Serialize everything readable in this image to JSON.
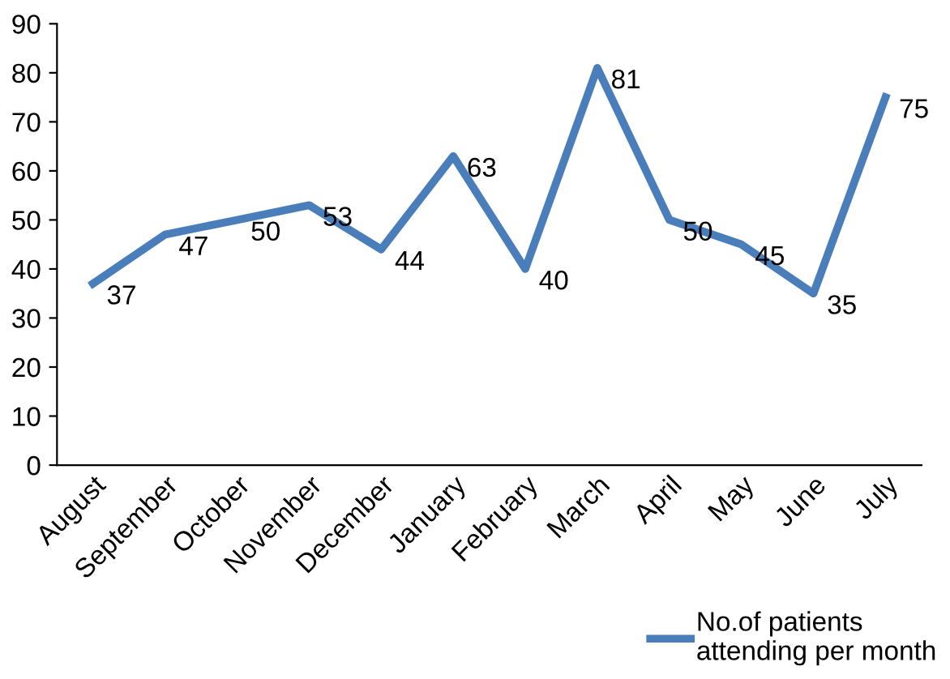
{
  "chart_data": {
    "type": "line",
    "categories": [
      "August",
      "September",
      "October",
      "November",
      "December",
      "January",
      "February",
      "March",
      "April",
      "May",
      "June",
      "July"
    ],
    "series": [
      {
        "name": "No.of patients\nattending per month",
        "color": "#4a7ebb",
        "values": [
          37,
          47,
          50,
          53,
          44,
          63,
          40,
          81,
          50,
          45,
          35,
          75
        ]
      }
    ],
    "ylim": [
      0,
      90
    ],
    "yticks": [
      0,
      10,
      20,
      30,
      40,
      50,
      60,
      70,
      80,
      90
    ],
    "data_labels": true,
    "grid": false,
    "legend": "bottom right",
    "marker": "none",
    "line_style": "solid"
  }
}
